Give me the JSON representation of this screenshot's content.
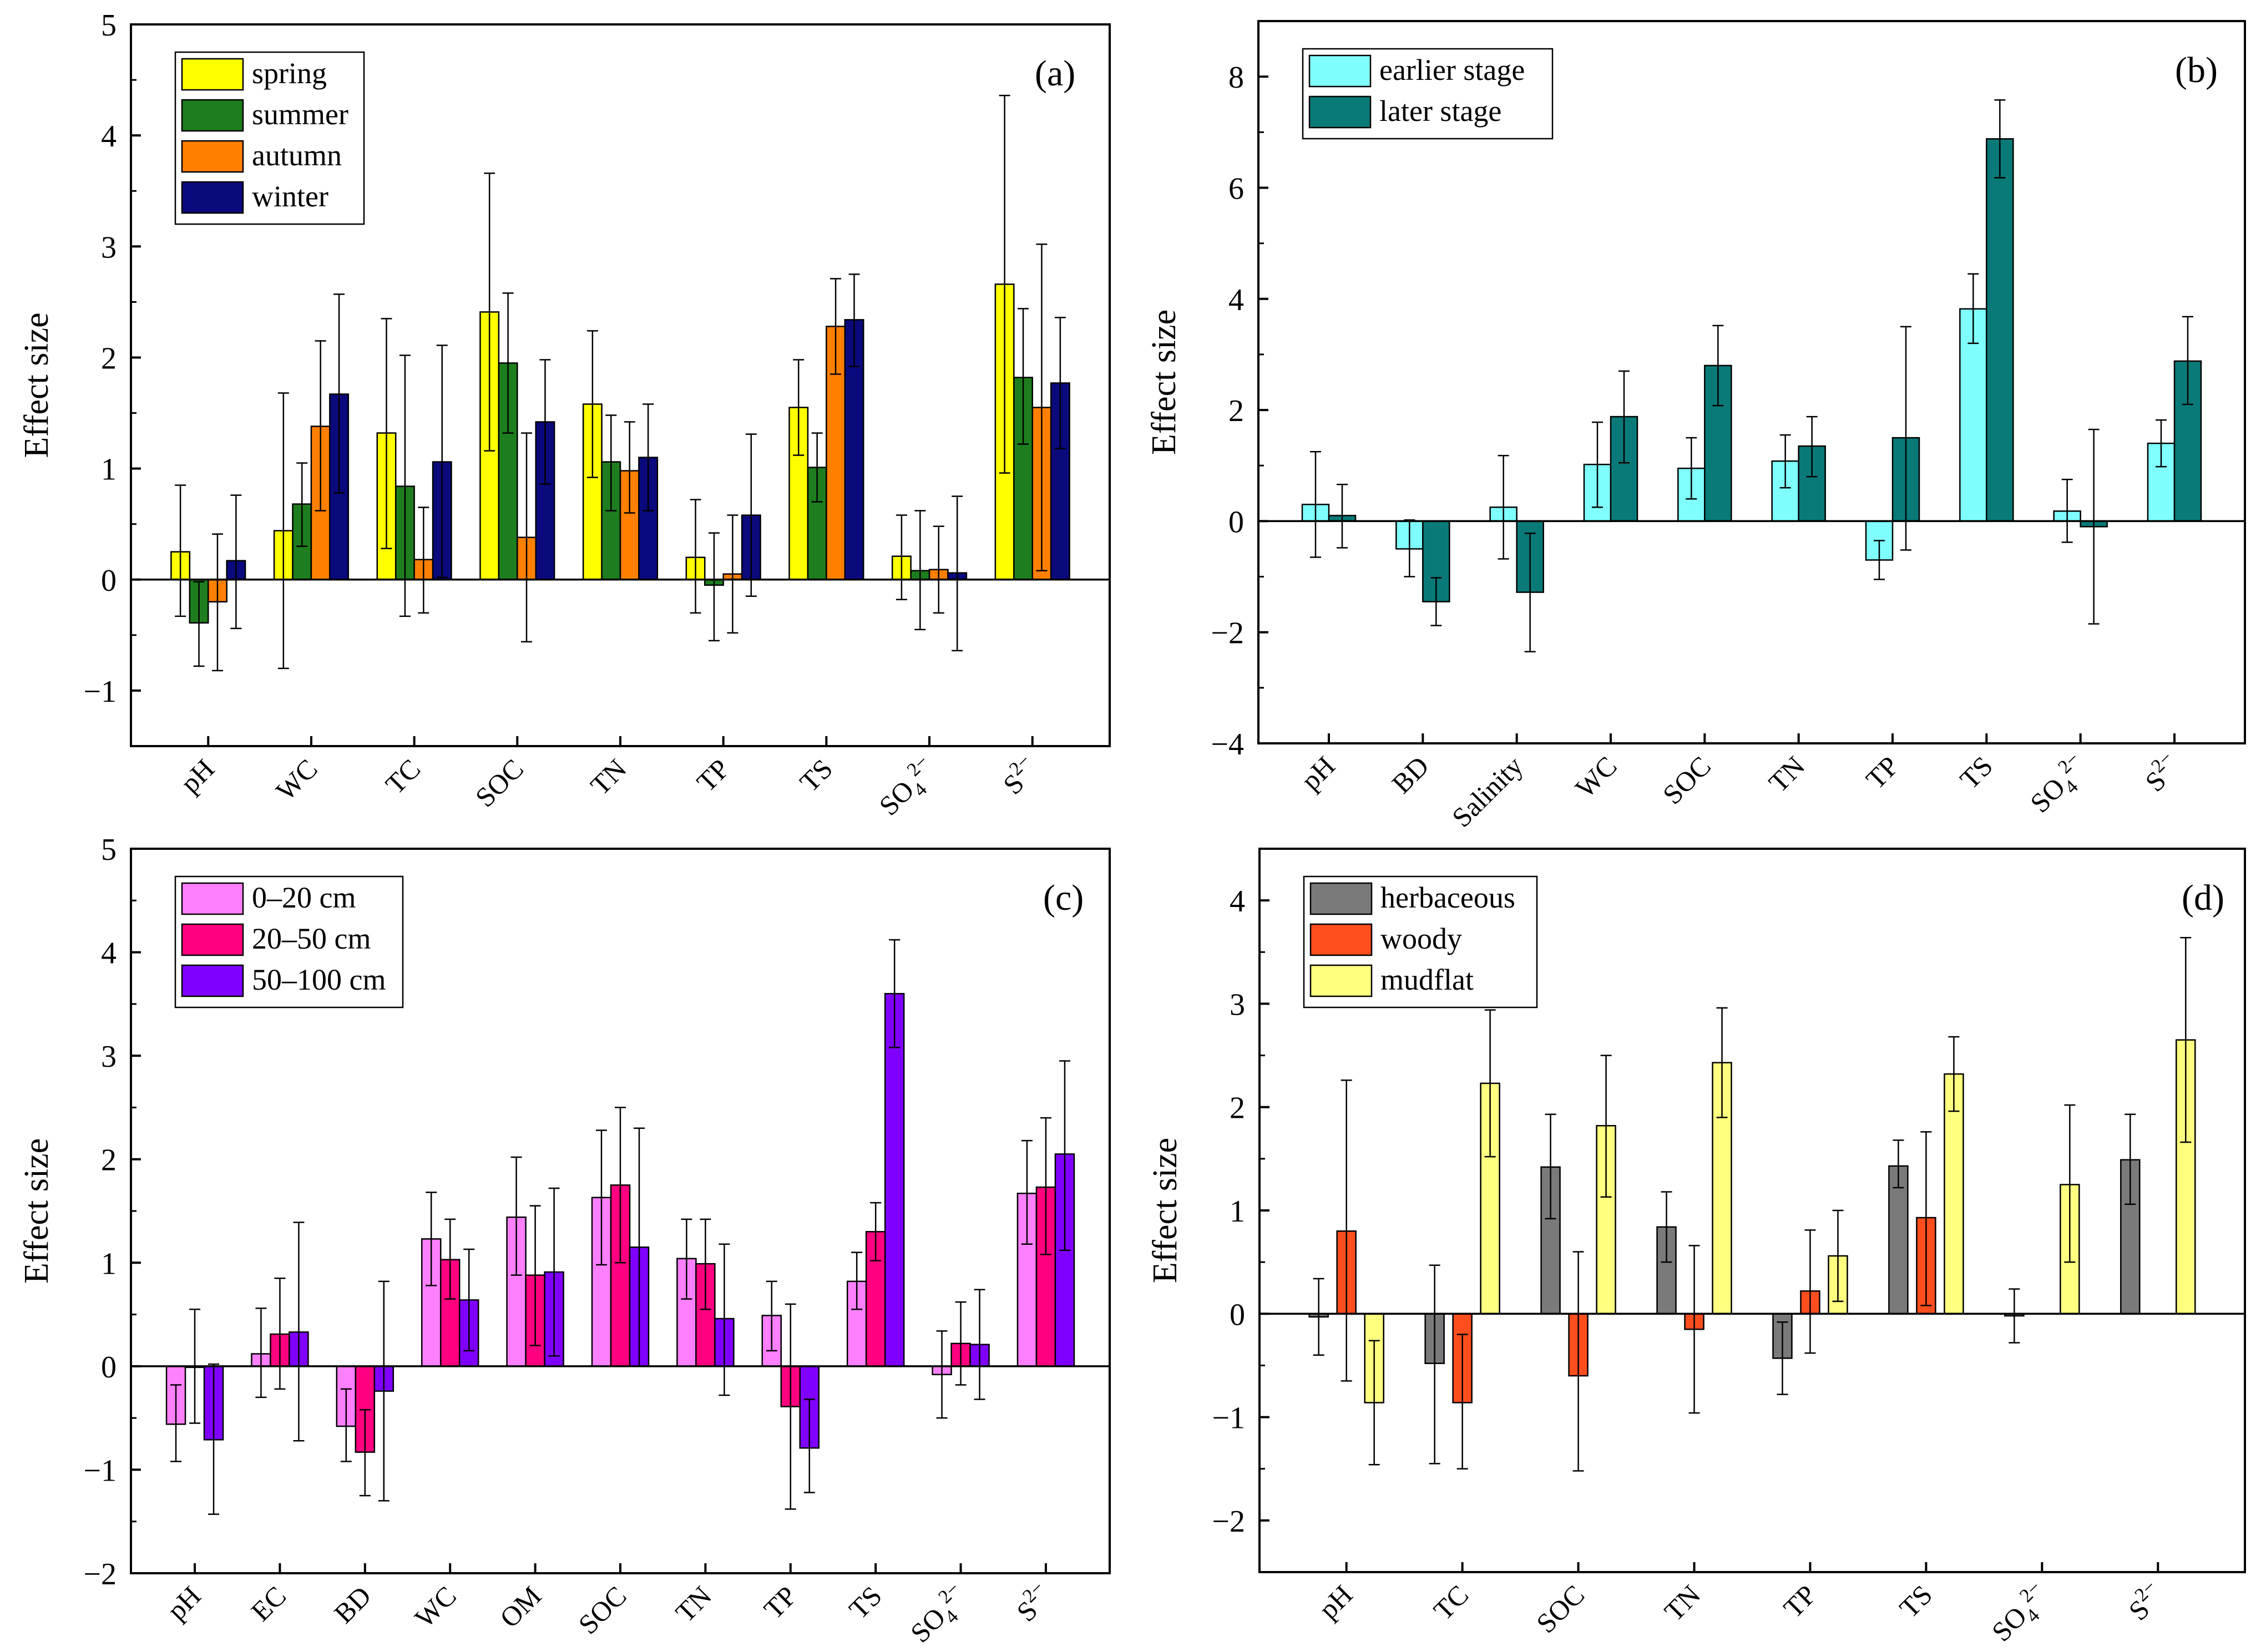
{
  "chart_data": [
    {
      "panel": "(a)",
      "type": "bar",
      "ylabel": "Effect size",
      "ylim": [
        -1.5,
        5
      ],
      "yticks": [
        -1,
        0,
        1,
        2,
        3,
        4,
        5
      ],
      "categories": [
        "pH",
        "WC",
        "TC",
        "SOC",
        "TN",
        "TP",
        "TS",
        "SO4^2-",
        "S^2-"
      ],
      "legend_position": "top-left",
      "series": [
        {
          "name": "spring",
          "color": "#ffff00",
          "values": [
            0.25,
            0.44,
            1.32,
            2.41,
            1.58,
            0.2,
            1.55,
            0.21,
            2.66
          ],
          "err_low": [
            -0.33,
            -0.8,
            0.28,
            1.16,
            0.92,
            -0.3,
            1.12,
            -0.18,
            0.96
          ],
          "err_high": [
            0.85,
            1.68,
            2.35,
            3.66,
            2.24,
            0.72,
            1.98,
            0.58,
            4.36
          ]
        },
        {
          "name": "summer",
          "color": "#1e7d1e",
          "values": [
            -0.39,
            0.68,
            0.84,
            1.95,
            1.06,
            -0.05,
            1.01,
            0.08,
            1.82
          ],
          "err_low": [
            -0.78,
            0.3,
            -0.33,
            1.32,
            0.62,
            -0.55,
            0.7,
            -0.45,
            1.22
          ],
          "err_high": [
            -0.02,
            1.05,
            2.02,
            2.58,
            1.48,
            0.42,
            1.32,
            0.62,
            2.44
          ]
        },
        {
          "name": "autumn",
          "color": "#ff8000",
          "values": [
            -0.2,
            1.38,
            0.18,
            0.38,
            0.98,
            0.05,
            2.28,
            0.09,
            1.55
          ],
          "err_low": [
            -0.82,
            0.62,
            -0.3,
            -0.56,
            0.6,
            -0.48,
            1.85,
            -0.3,
            0.08
          ],
          "err_high": [
            0.41,
            2.15,
            0.65,
            1.32,
            1.42,
            0.58,
            2.71,
            0.48,
            3.02
          ]
        },
        {
          "name": "winter",
          "color": "#0a0a7d",
          "values": [
            0.17,
            1.67,
            1.06,
            1.42,
            1.1,
            0.58,
            2.34,
            0.06,
            1.77
          ],
          "err_low": [
            -0.44,
            0.78,
            0.02,
            0.86,
            0.62,
            -0.15,
            1.92,
            -0.64,
            1.18
          ],
          "err_high": [
            0.76,
            2.57,
            2.11,
            1.98,
            1.58,
            1.31,
            2.75,
            0.75,
            2.36
          ]
        }
      ]
    },
    {
      "panel": "(b)",
      "type": "bar",
      "ylabel": "Effect size",
      "ylim": [
        -4,
        9
      ],
      "yticks": [
        -4,
        -2,
        0,
        2,
        4,
        6,
        8
      ],
      "categories": [
        "pH",
        "BD",
        "Salinity",
        "WC",
        "SOC",
        "TN",
        "TP",
        "TS",
        "SO4^2-",
        "S^2-"
      ],
      "legend_position": "top-left",
      "series": [
        {
          "name": "earlier stage",
          "color": "#80ffff",
          "values": [
            0.3,
            -0.5,
            0.25,
            1.02,
            0.95,
            1.08,
            -0.7,
            3.82,
            0.18,
            1.4
          ],
          "err_low": [
            -0.65,
            -1.0,
            -0.68,
            0.25,
            0.4,
            0.6,
            -1.05,
            3.2,
            -0.38,
            0.98
          ],
          "err_high": [
            1.25,
            0.02,
            1.18,
            1.78,
            1.5,
            1.55,
            -0.35,
            4.45,
            0.75,
            1.82
          ]
        },
        {
          "name": "later stage",
          "color": "#0a7a78",
          "values": [
            0.1,
            -1.45,
            -1.28,
            1.88,
            2.8,
            1.35,
            1.5,
            6.88,
            -0.1,
            2.88
          ],
          "err_low": [
            -0.48,
            -1.88,
            -2.35,
            1.05,
            2.08,
            0.8,
            -0.52,
            6.18,
            -1.85,
            2.1
          ],
          "err_high": [
            0.66,
            -1.02,
            -0.22,
            2.7,
            3.52,
            1.88,
            3.5,
            7.58,
            1.65,
            3.68
          ]
        }
      ]
    },
    {
      "panel": "(c)",
      "type": "bar",
      "ylabel": "Effect size",
      "ylim": [
        -2,
        5
      ],
      "yticks": [
        -2,
        -1,
        0,
        1,
        2,
        3,
        4,
        5
      ],
      "categories": [
        "pH",
        "EC",
        "BD",
        "WC",
        "OM",
        "SOC",
        "TN",
        "TP",
        "TS",
        "SO4^2-",
        "S^2-"
      ],
      "legend_position": "top-left",
      "series": [
        {
          "name": "0–20 cm",
          "color": "#ff80ff",
          "values": [
            -0.56,
            0.12,
            -0.58,
            1.23,
            1.44,
            1.63,
            1.04,
            0.49,
            0.82,
            -0.08,
            1.67
          ],
          "err_low": [
            -0.92,
            -0.3,
            -0.92,
            0.78,
            0.88,
            0.98,
            0.65,
            0.15,
            0.55,
            -0.5,
            1.18
          ],
          "err_high": [
            -0.18,
            0.56,
            -0.22,
            1.68,
            2.02,
            2.28,
            1.42,
            0.82,
            1.1,
            0.34,
            2.18
          ]
        },
        {
          "name": "20–50 cm",
          "color": "#ff0080",
          "values": [
            -0.01,
            0.31,
            -0.83,
            1.03,
            0.88,
            1.75,
            0.99,
            -0.39,
            1.3,
            0.22,
            1.73
          ],
          "err_low": [
            -0.55,
            -0.22,
            -1.25,
            0.65,
            0.2,
            1.0,
            0.55,
            -1.38,
            1.02,
            -0.18,
            1.08
          ],
          "err_high": [
            0.55,
            0.85,
            -0.42,
            1.42,
            1.55,
            2.5,
            1.42,
            0.6,
            1.58,
            0.62,
            2.4
          ]
        },
        {
          "name": "50–100 cm",
          "color": "#8000ff",
          "values": [
            -0.71,
            0.33,
            -0.24,
            0.64,
            0.91,
            1.15,
            0.46,
            -0.79,
            3.6,
            0.21,
            2.05
          ],
          "err_low": [
            -1.43,
            -0.72,
            -1.3,
            0.15,
            0.1,
            0.0,
            -0.28,
            -1.22,
            3.08,
            -0.32,
            1.12
          ],
          "err_high": [
            0.02,
            1.39,
            0.82,
            1.13,
            1.72,
            2.3,
            1.18,
            -0.32,
            4.12,
            0.74,
            2.95
          ]
        }
      ]
    },
    {
      "panel": "(d)",
      "type": "bar",
      "ylabel": "Effect size",
      "ylim": [
        -2.5,
        4.5
      ],
      "yticks": [
        -2,
        -1,
        0,
        1,
        2,
        3,
        4
      ],
      "categories": [
        "pH",
        "TC",
        "SOC",
        "TN",
        "TP",
        "TS",
        "SO4^2-",
        "S^2-"
      ],
      "legend_position": "top-left",
      "series": [
        {
          "name": "herbaceous",
          "color": "#7a7a7a",
          "values": [
            -0.03,
            -0.48,
            1.42,
            0.84,
            -0.43,
            1.43,
            -0.02,
            1.49
          ],
          "err_low": [
            -0.4,
            -1.45,
            0.92,
            0.5,
            -0.78,
            1.22,
            -0.28,
            1.06
          ],
          "err_high": [
            0.34,
            0.47,
            1.93,
            1.18,
            -0.08,
            1.68,
            0.24,
            1.93
          ]
        },
        {
          "name": "woody",
          "color": "#ff4e1e",
          "values": [
            0.8,
            -0.86,
            -0.6,
            -0.15,
            0.22,
            0.93,
            null,
            null
          ],
          "err_low": [
            -0.65,
            -1.5,
            -1.52,
            -0.96,
            -0.38,
            0.08,
            null,
            null
          ],
          "err_high": [
            2.26,
            -0.2,
            0.6,
            0.66,
            0.81,
            1.76,
            null,
            null
          ]
        },
        {
          "name": "mudflat",
          "color": "#ffff80",
          "values": [
            -0.86,
            2.23,
            1.82,
            2.43,
            0.56,
            2.32,
            1.25,
            2.65
          ],
          "err_low": [
            -1.46,
            1.52,
            1.13,
            1.9,
            0.12,
            1.96,
            0.5,
            1.66
          ],
          "err_high": [
            -0.26,
            2.94,
            2.5,
            2.96,
            1.0,
            2.68,
            2.02,
            3.64
          ]
        }
      ]
    }
  ]
}
